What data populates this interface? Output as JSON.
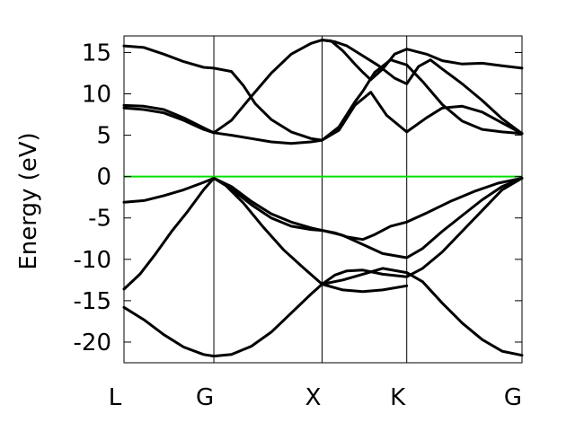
{
  "chart_data": {
    "type": "line",
    "title": "",
    "xlabel": "",
    "ylabel": "Energy (eV)",
    "xlim": [
      0,
      1
    ],
    "ylim": [
      -22.5,
      17
    ],
    "x_ticks": [
      {
        "label": "L",
        "value": 0.0
      },
      {
        "label": "G",
        "value": 0.2258
      },
      {
        "label": "X",
        "value": 0.4977
      },
      {
        "label": "K",
        "value": 0.7104
      },
      {
        "label": "G",
        "value": 1.0
      }
    ],
    "y_ticks": [
      {
        "label": "15",
        "value": 15
      },
      {
        "label": "10",
        "value": 10
      },
      {
        "label": "5",
        "value": 5
      },
      {
        "label": "0",
        "value": 0
      },
      {
        "label": "-5",
        "value": -5
      },
      {
        "label": "-10",
        "value": -10
      },
      {
        "label": "-15",
        "value": -15
      },
      {
        "label": "-20",
        "value": -20
      }
    ],
    "fermi_level": {
      "value": 0,
      "color": "#00dd00"
    },
    "band_color": "#000000",
    "grid": false,
    "legend": "none",
    "series": [
      {
        "points": [
          [
            0.0,
            -15.8
          ],
          [
            0.05,
            -17.3
          ],
          [
            0.1,
            -19.1
          ],
          [
            0.15,
            -20.6
          ],
          [
            0.2,
            -21.5
          ],
          [
            0.2258,
            -21.7
          ],
          [
            0.27,
            -21.5
          ],
          [
            0.32,
            -20.5
          ],
          [
            0.37,
            -18.8
          ],
          [
            0.42,
            -16.5
          ],
          [
            0.47,
            -14.2
          ],
          [
            0.4977,
            -13.0
          ],
          [
            0.55,
            -12.5
          ],
          [
            0.6,
            -11.8
          ],
          [
            0.65,
            -11.1
          ],
          [
            0.7104,
            -11.6
          ],
          [
            0.75,
            -12.7
          ],
          [
            0.8,
            -15.3
          ],
          [
            0.85,
            -17.7
          ],
          [
            0.9,
            -19.7
          ],
          [
            0.95,
            -21.1
          ],
          [
            1.0,
            -21.6
          ]
        ]
      },
      {
        "points": [
          [
            0.0,
            -13.6
          ],
          [
            0.04,
            -11.8
          ],
          [
            0.08,
            -9.3
          ],
          [
            0.12,
            -6.6
          ],
          [
            0.16,
            -4.2
          ],
          [
            0.2,
            -1.6
          ],
          [
            0.2258,
            -0.2
          ],
          [
            0.25,
            -0.8
          ],
          [
            0.3,
            -3.2
          ],
          [
            0.35,
            -6.1
          ],
          [
            0.4,
            -8.8
          ],
          [
            0.45,
            -11.0
          ],
          [
            0.4977,
            -13.0
          ],
          [
            0.55,
            -13.7
          ],
          [
            0.6,
            -13.9
          ],
          [
            0.65,
            -13.7
          ],
          [
            0.7104,
            -13.2
          ]
        ]
      },
      {
        "points": [
          [
            0.0,
            -3.1
          ],
          [
            0.05,
            -2.9
          ],
          [
            0.1,
            -2.3
          ],
          [
            0.15,
            -1.6
          ],
          [
            0.2,
            -0.7
          ],
          [
            0.2258,
            -0.2
          ],
          [
            0.27,
            -1.5
          ],
          [
            0.32,
            -3.4
          ],
          [
            0.37,
            -5.0
          ],
          [
            0.42,
            -6.0
          ],
          [
            0.47,
            -6.4
          ],
          [
            0.4977,
            -6.5
          ],
          [
            0.55,
            -7.1
          ],
          [
            0.6,
            -8.2
          ],
          [
            0.65,
            -9.3
          ],
          [
            0.7104,
            -9.8
          ],
          [
            0.75,
            -8.7
          ],
          [
            0.8,
            -6.6
          ],
          [
            0.85,
            -4.7
          ],
          [
            0.9,
            -2.8
          ],
          [
            0.95,
            -1.2
          ],
          [
            1.0,
            -0.2
          ]
        ]
      },
      {
        "points": [
          [
            0.2258,
            -0.2
          ],
          [
            0.27,
            -1.2
          ],
          [
            0.32,
            -3.0
          ],
          [
            0.37,
            -4.5
          ],
          [
            0.42,
            -5.5
          ],
          [
            0.47,
            -6.2
          ],
          [
            0.4977,
            -6.5
          ],
          [
            0.53,
            -6.8
          ],
          [
            0.56,
            -7.3
          ],
          [
            0.6,
            -7.6
          ],
          [
            0.63,
            -7.0
          ],
          [
            0.67,
            -6.0
          ],
          [
            0.7104,
            -5.5
          ],
          [
            0.76,
            -4.4
          ],
          [
            0.82,
            -3.0
          ],
          [
            0.88,
            -1.8
          ],
          [
            0.94,
            -0.8
          ],
          [
            1.0,
            -0.2
          ]
        ]
      },
      {
        "points": [
          [
            0.4977,
            -13.0
          ],
          [
            0.53,
            -11.9
          ],
          [
            0.56,
            -11.4
          ],
          [
            0.6,
            -11.3
          ],
          [
            0.65,
            -11.8
          ],
          [
            0.7104,
            -12.1
          ],
          [
            0.75,
            -11.1
          ],
          [
            0.8,
            -9.1
          ],
          [
            0.85,
            -6.6
          ],
          [
            0.9,
            -4.1
          ],
          [
            0.95,
            -1.6
          ],
          [
            1.0,
            -0.2
          ]
        ]
      },
      {
        "points": [
          [
            0.0,
            8.3
          ],
          [
            0.05,
            8.1
          ],
          [
            0.1,
            7.7
          ],
          [
            0.15,
            6.8
          ],
          [
            0.2,
            5.7
          ],
          [
            0.2258,
            5.3
          ],
          [
            0.27,
            5.0
          ],
          [
            0.32,
            4.6
          ],
          [
            0.37,
            4.2
          ],
          [
            0.42,
            4.0
          ],
          [
            0.47,
            4.2
          ],
          [
            0.4977,
            4.4
          ],
          [
            0.54,
            6.0
          ],
          [
            0.58,
            9.0
          ],
          [
            0.6,
            10.3
          ],
          [
            0.63,
            12.6
          ],
          [
            0.67,
            14.1
          ],
          [
            0.7104,
            13.5
          ],
          [
            0.75,
            11.5
          ],
          [
            0.8,
            8.7
          ],
          [
            0.85,
            6.7
          ],
          [
            0.9,
            5.7
          ],
          [
            0.95,
            5.4
          ],
          [
            1.0,
            5.2
          ]
        ]
      },
      {
        "points": [
          [
            0.0,
            8.6
          ],
          [
            0.05,
            8.5
          ],
          [
            0.1,
            8.1
          ],
          [
            0.15,
            7.1
          ],
          [
            0.2,
            5.9
          ],
          [
            0.2258,
            5.3
          ],
          [
            0.27,
            6.8
          ],
          [
            0.32,
            9.7
          ],
          [
            0.37,
            12.5
          ],
          [
            0.42,
            14.8
          ],
          [
            0.47,
            16.1
          ],
          [
            0.4977,
            16.5
          ],
          [
            0.53,
            16.3
          ],
          [
            0.56,
            15.8
          ],
          [
            0.6,
            14.6
          ],
          [
            0.64,
            13.4
          ],
          [
            0.68,
            11.9
          ],
          [
            0.7104,
            11.2
          ],
          [
            0.74,
            13.3
          ],
          [
            0.77,
            14.1
          ],
          [
            0.8,
            13.0
          ],
          [
            0.85,
            11.2
          ],
          [
            0.9,
            9.2
          ],
          [
            0.95,
            7.0
          ],
          [
            1.0,
            5.2
          ]
        ]
      },
      {
        "points": [
          [
            0.0,
            15.8
          ],
          [
            0.05,
            15.6
          ],
          [
            0.1,
            14.8
          ],
          [
            0.15,
            13.9
          ],
          [
            0.2,
            13.2
          ],
          [
            0.2258,
            13.1
          ],
          [
            0.27,
            12.7
          ],
          [
            0.3,
            11.0
          ],
          [
            0.33,
            8.8
          ],
          [
            0.37,
            6.9
          ],
          [
            0.42,
            5.4
          ],
          [
            0.47,
            4.6
          ],
          [
            0.4977,
            4.4
          ],
          [
            0.54,
            5.6
          ],
          [
            0.58,
            8.6
          ],
          [
            0.62,
            10.2
          ],
          [
            0.66,
            7.4
          ],
          [
            0.7104,
            5.4
          ],
          [
            0.76,
            7.1
          ],
          [
            0.8,
            8.3
          ],
          [
            0.85,
            8.5
          ],
          [
            0.9,
            7.8
          ],
          [
            0.95,
            6.5
          ],
          [
            1.0,
            5.2
          ]
        ]
      },
      {
        "points": [
          [
            0.4977,
            16.5
          ],
          [
            0.52,
            16.4
          ],
          [
            0.55,
            15.2
          ],
          [
            0.58,
            13.6
          ],
          [
            0.6,
            12.6
          ],
          [
            0.62,
            11.7
          ],
          [
            0.65,
            13.0
          ],
          [
            0.68,
            14.8
          ],
          [
            0.7104,
            15.4
          ],
          [
            0.76,
            14.8
          ],
          [
            0.8,
            14.0
          ],
          [
            0.85,
            13.6
          ],
          [
            0.9,
            13.7
          ],
          [
            0.95,
            13.4
          ],
          [
            1.0,
            13.1
          ]
        ]
      }
    ]
  }
}
